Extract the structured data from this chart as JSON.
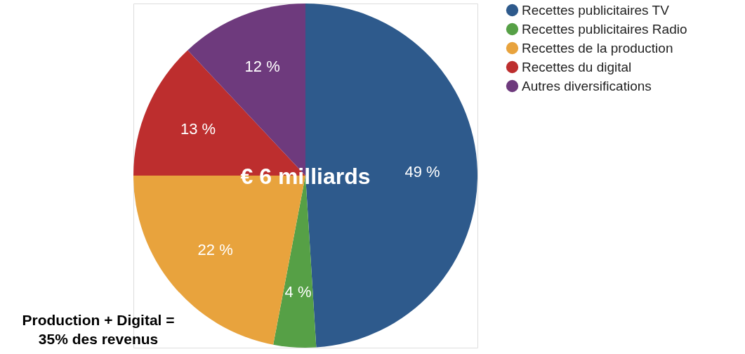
{
  "chart_data": {
    "type": "pie",
    "categories": [
      "Recettes publicitaires TV",
      "Recettes publicitaires Radio",
      "Recettes de la production",
      "Recettes du digital",
      "Autres diversifications"
    ],
    "values": [
      49,
      4,
      22,
      13,
      12
    ],
    "colors": [
      "#2e5a8c",
      "#56a046",
      "#e8a33d",
      "#bd2e2e",
      "#6e3a7d"
    ],
    "value_labels": [
      "49 %",
      "4 %",
      "22 %",
      "13 %",
      "12 %"
    ],
    "legend": "right",
    "annotations": [
      "€ 6 milliards",
      "Production + Digital =\n35% des revenus"
    ]
  }
}
